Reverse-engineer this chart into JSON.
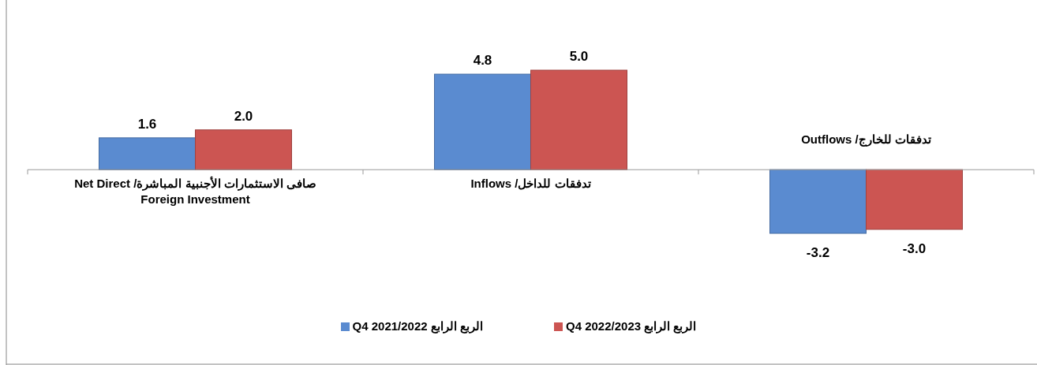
{
  "chart_data": {
    "type": "bar",
    "categories": [
      "صافى الاستثمارات الأجنبية المباشرة/  Net Direct Foreign Investment",
      "تدفقات للداخل/ Inflows",
      "تدفقات للخارج/ Outflows"
    ],
    "series": [
      {
        "name": "Q4  2021/2022  الربع الرابع",
        "color": "#5a8bd0",
        "values": [
          1.6,
          4.8,
          -3.2
        ],
        "value_labels": [
          "1.6",
          "4.8",
          "-3.2"
        ]
      },
      {
        "name": "Q4  2022/2023  الربع  الرابع",
        "color": "#cc5552",
        "values": [
          2.0,
          5.0,
          -3.0
        ],
        "value_labels": [
          "2.0",
          "5.0",
          "-3.0"
        ]
      }
    ],
    "legend": "bottom"
  }
}
